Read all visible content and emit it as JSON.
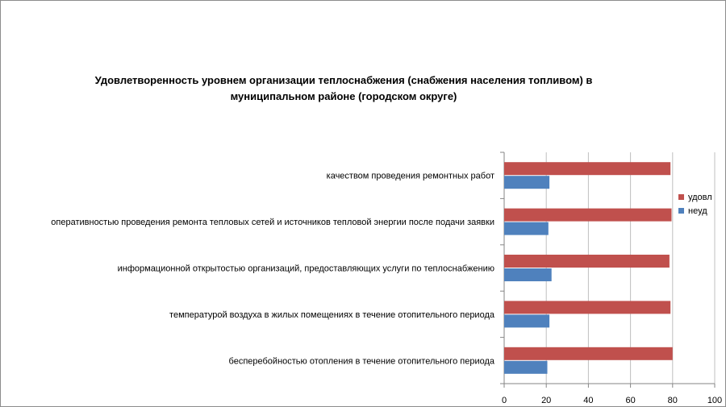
{
  "chart_data": {
    "type": "bar",
    "orientation": "horizontal",
    "title_lines": [
      "Удовлетворенность уровнем организации теплоснабжения (снабжения населения топливом) в",
      "муниципальном районе (городском округе)"
    ],
    "categories": [
      "качеством проведения ремонтных работ",
      "оперативностью проведения ремонта тепловых сетей и источников тепловой энергии после подачи заявки",
      "информационной открытостью организаций, предоставляющих услуги по теплоснабжению",
      "температурой воздуха в жилых помещениях в течение отопительного периода",
      "бесперебойностью отопления в течение отопительного периода"
    ],
    "series": [
      {
        "name": "удовл",
        "color": "#C0504D",
        "values": [
          79,
          79.5,
          78.5,
          79,
          80
        ]
      },
      {
        "name": "неуд",
        "color": "#4F81BD",
        "values": [
          21.5,
          21,
          22.5,
          21.5,
          20.5
        ]
      }
    ],
    "xlim": [
      0,
      100
    ],
    "xticks": [
      0,
      20,
      40,
      60,
      80,
      100
    ],
    "grid": true,
    "legend_position": "right"
  }
}
